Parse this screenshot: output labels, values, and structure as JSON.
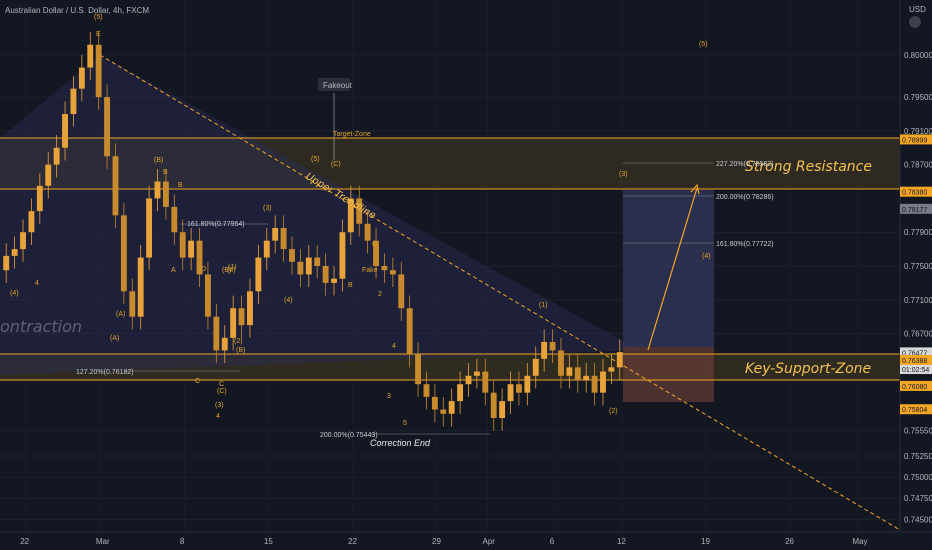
{
  "header": {
    "symbol_title": "Australian Dollar / U.S. Dollar, 4h, FXCM",
    "currency": "USD"
  },
  "chart_data": {
    "type": "candlestick",
    "title": "Australian Dollar / U.S. Dollar, 4h, FXCM",
    "ylim": [
      0.7435,
      0.8065
    ],
    "x_ticks": [
      {
        "label": "22",
        "x": 3
      },
      {
        "label": "Mar",
        "x": 12
      },
      {
        "label": "8",
        "x": 22
      },
      {
        "label": "15",
        "x": 32
      },
      {
        "label": "22",
        "x": 42
      },
      {
        "label": "29",
        "x": 52
      },
      {
        "label": "Apr",
        "x": 58
      },
      {
        "label": "6",
        "x": 66
      },
      {
        "label": "12",
        "x": 74
      },
      {
        "label": "19",
        "x": 84
      },
      {
        "label": "26",
        "x": 94
      },
      {
        "label": "May",
        "x": 102
      }
    ],
    "y_ticks": [
      0.8,
      0.795,
      0.791,
      0.787,
      0.779,
      0.775,
      0.771,
      0.767,
      0.7555,
      0.7525,
      0.75,
      0.7475,
      0.745
    ],
    "price_levels": [
      {
        "label": "0.78999",
        "value": 0.78999,
        "color": "#f5a623"
      },
      {
        "label": "0.78380",
        "value": 0.7838,
        "color": "#f5a623"
      },
      {
        "label": "0.78177",
        "value": 0.78177,
        "color": "#787b86"
      },
      {
        "label": "0.76477",
        "value": 0.76477,
        "color": "#d8d8d8"
      },
      {
        "label": "01:02:54",
        "value": 0.7628,
        "color": "#d8d8d8"
      },
      {
        "label": "0.76388",
        "value": 0.76388,
        "color": "#f5a623"
      },
      {
        "label": "0.76080",
        "value": 0.7608,
        "color": "#f5a623"
      },
      {
        "label": "0.75804",
        "value": 0.75804,
        "color": "#f5a623"
      }
    ],
    "candles_close": [
      0.7762,
      0.777,
      0.779,
      0.7815,
      0.7845,
      0.787,
      0.789,
      0.793,
      0.796,
      0.7985,
      0.8012,
      0.795,
      0.788,
      0.781,
      0.772,
      0.769,
      0.776,
      0.783,
      0.785,
      0.782,
      0.779,
      0.776,
      0.778,
      0.774,
      0.769,
      0.765,
      0.7665,
      0.77,
      0.768,
      0.772,
      0.776,
      0.778,
      0.7795,
      0.777,
      0.7755,
      0.774,
      0.776,
      0.775,
      0.773,
      0.7735,
      0.779,
      0.783,
      0.78,
      0.778,
      0.775,
      0.7745,
      0.774,
      0.77,
      0.7645,
      0.761,
      0.7595,
      0.758,
      0.7575,
      0.759,
      0.761,
      0.762,
      0.7625,
      0.76,
      0.757,
      0.759,
      0.761,
      0.76,
      0.762,
      0.764,
      0.766,
      0.765,
      0.762,
      0.763,
      0.7615,
      0.762,
      0.76,
      0.7625,
      0.763,
      0.7648
    ],
    "zones": [
      {
        "label": "Strong Resistance",
        "top": 0.78999,
        "bottom": 0.7818
      },
      {
        "label": "Key-Support-Zone",
        "top": 0.76477,
        "bottom": 0.7608
      }
    ],
    "annotations": {
      "fakeout": "Fakeout",
      "target_zone": "Target-Zone",
      "upper_trendline": "Upper Trendline",
      "contraction": "ontraction",
      "correction_end": "Correction End",
      "fake": "Fake",
      "fib_levels": [
        {
          "label": "227.20%(0.78582)",
          "value": 0.78582
        },
        {
          "label": "200.00%(0.78286)",
          "value": 0.78286
        },
        {
          "label": "161.80%(0.77722)",
          "value": 0.77722
        },
        {
          "label": "161.80%(0.77954)",
          "value": 0.77954
        },
        {
          "label": "127.20%(0.76182)",
          "value": 0.76182
        },
        {
          "label": "200.00%(0.75443)",
          "value": 0.75443
        }
      ],
      "wave_labels": [
        "(5)",
        "(4)",
        "4",
        "(A)",
        "A",
        "(B)",
        "B",
        "B",
        "C",
        "(C)",
        "(A)",
        "(B)",
        "D",
        "(2)",
        "(B)",
        "(4)",
        "(1)",
        "(3)",
        "(5)",
        "(C)",
        "C",
        "C",
        "A",
        "B",
        "2",
        "3",
        "4",
        "5",
        "(1)",
        "(2)",
        "(3)",
        "(4)",
        "(5)",
        "(4)",
        "E",
        "C",
        "(3)",
        "4"
      ]
    }
  },
  "colors": {
    "up": "#e8a33a",
    "down": "#c78a2c",
    "accent": "#f5a623",
    "bg": "#131722"
  }
}
